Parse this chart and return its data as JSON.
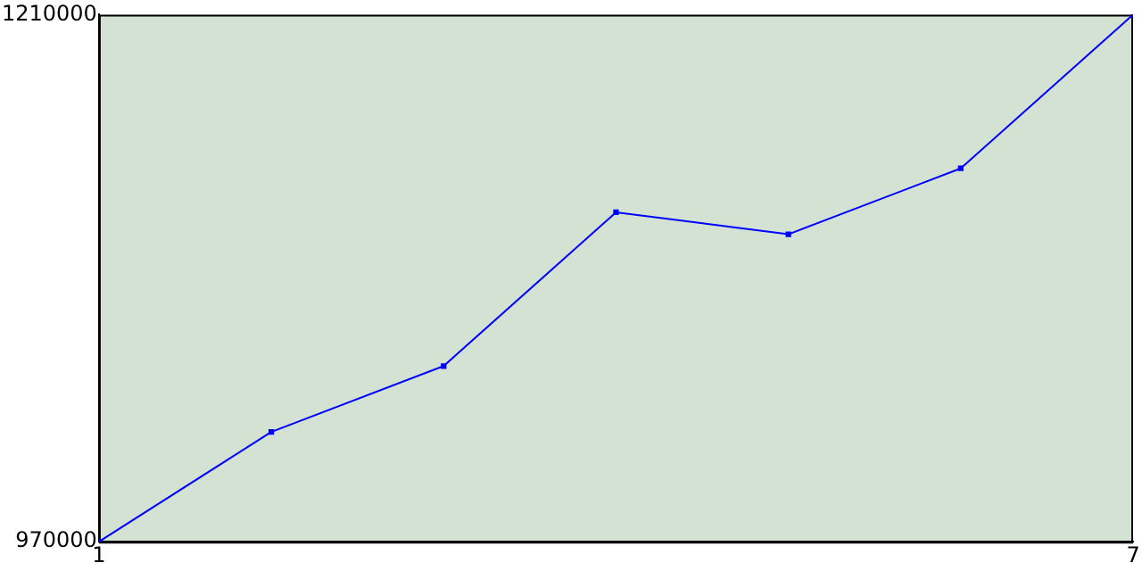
{
  "chart_data": {
    "type": "line",
    "x": [
      1,
      2,
      3,
      4,
      5,
      6,
      7
    ],
    "series": [
      {
        "color": "#0000ff",
        "values": [
          970000,
          1020000,
          1050000,
          1120000,
          1110000,
          1140000,
          1210000
        ]
      }
    ],
    "xlim": [
      1,
      7
    ],
    "xticks": [
      1,
      7
    ],
    "ylim": [
      970000,
      1210000
    ],
    "yticks": [
      970000,
      1210000
    ],
    "grid": false,
    "legend": false,
    "marker": "square",
    "line_style": "solid"
  }
}
